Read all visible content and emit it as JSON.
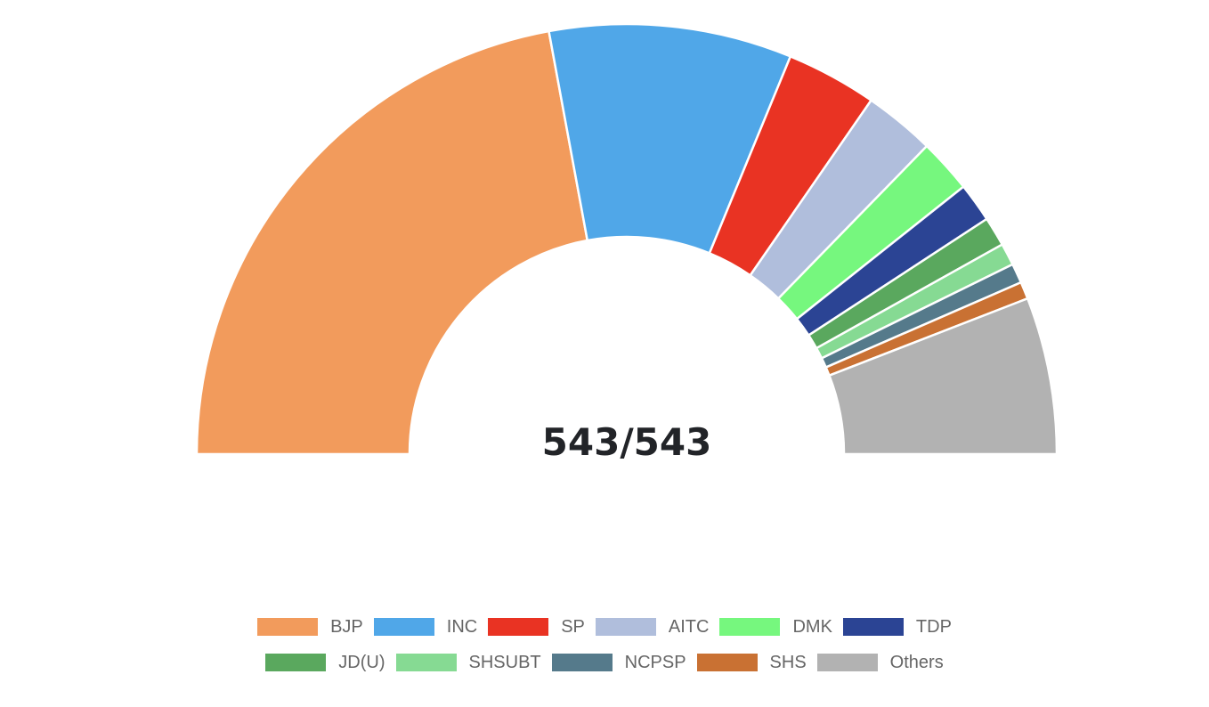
{
  "chart_data": {
    "type": "pie",
    "variant": "semicircle-parliament",
    "total_label": "543/543",
    "series": [
      {
        "name": "BJP",
        "value": 240,
        "color": "#f29b5c"
      },
      {
        "name": "INC",
        "value": 99,
        "color": "#50a7e8"
      },
      {
        "name": "SP",
        "value": 37,
        "color": "#e93323"
      },
      {
        "name": "AITC",
        "value": 29,
        "color": "#b0bedc"
      },
      {
        "name": "DMK",
        "value": 22,
        "color": "#76f77e"
      },
      {
        "name": "TDP",
        "value": 16,
        "color": "#2b4494"
      },
      {
        "name": "JD(U)",
        "value": 12,
        "color": "#5aa85e"
      },
      {
        "name": "SHSUBT",
        "value": 9,
        "color": "#86da93"
      },
      {
        "name": "NCPSP",
        "value": 8,
        "color": "#557a8b"
      },
      {
        "name": "SHS",
        "value": 7,
        "color": "#c97133"
      },
      {
        "name": "Others",
        "value": 64,
        "color": "#b2b2b2"
      }
    ],
    "legend_position": "bottom"
  }
}
